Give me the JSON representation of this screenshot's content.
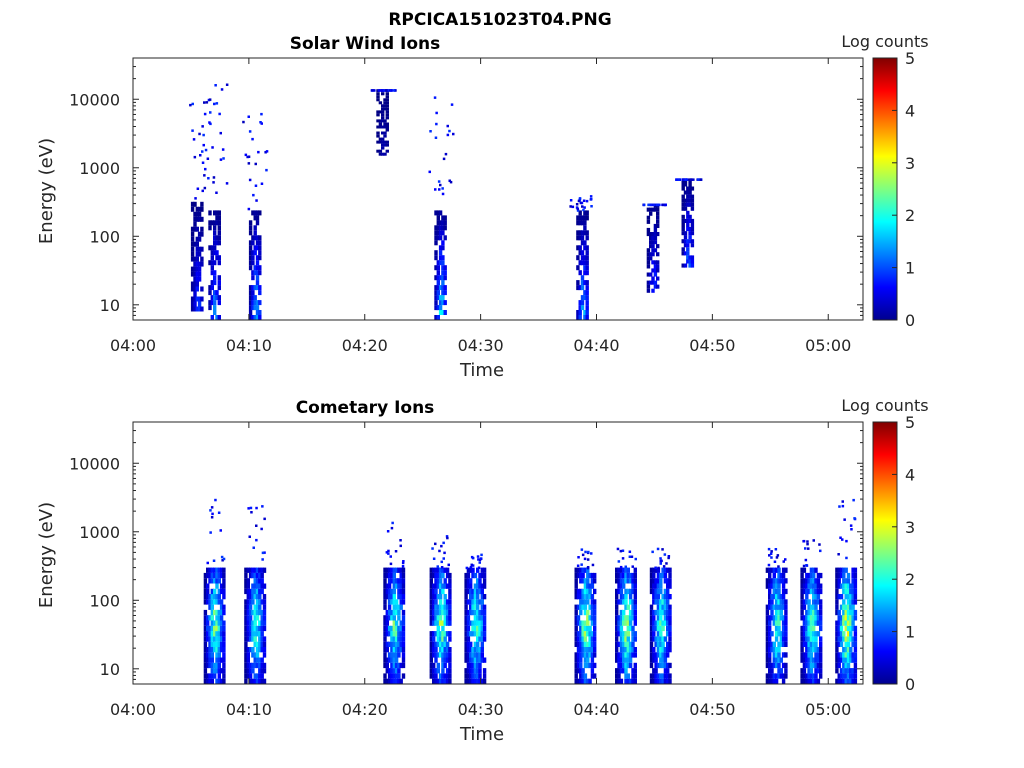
{
  "figure": {
    "title": "RPCICA151023T04.PNG"
  },
  "colorbar": {
    "label": "Log counts",
    "ticks": [
      "0",
      "1",
      "2",
      "3",
      "4",
      "5"
    ],
    "range": [
      0,
      5
    ],
    "colormap": "jet"
  },
  "chart_data": [
    {
      "type": "heatmap",
      "title": "Solar Wind Ions",
      "xlabel": "Time",
      "ylabel": "Energy (eV)",
      "yscale": "log",
      "xlim": [
        "04:00",
        "05:03"
      ],
      "ylim": [
        6,
        40000
      ],
      "xticks": [
        "04:00",
        "04:10",
        "04:20",
        "04:30",
        "04:40",
        "04:50",
        "05:00"
      ],
      "yticks": [
        "10",
        "100",
        "1000",
        "10000"
      ],
      "clabel": "Log counts",
      "clim": [
        0,
        5
      ],
      "bursts": [
        {
          "time": "04:05:30",
          "energy_min": 8,
          "energy_max": 13000,
          "peak_log_counts": 1.0
        },
        {
          "time": "04:07:00",
          "energy_min": 6,
          "energy_max": 20000,
          "peak_log_counts": 1.6
        },
        {
          "time": "04:10:30",
          "energy_min": 6,
          "energy_max": 7000,
          "peak_log_counts": 1.8
        },
        {
          "time": "04:21:30",
          "energy_min": 1500,
          "energy_max": 14000,
          "peak_log_counts": 0.3
        },
        {
          "time": "04:26:30",
          "energy_min": 6,
          "energy_max": 15000,
          "peak_log_counts": 2.2
        },
        {
          "time": "04:38:45",
          "energy_min": 6,
          "energy_max": 400,
          "peak_log_counts": 1.8
        },
        {
          "time": "04:44:50",
          "energy_min": 15,
          "energy_max": 300,
          "peak_log_counts": 1.0
        },
        {
          "time": "04:47:50",
          "energy_min": 35,
          "energy_max": 700,
          "peak_log_counts": 1.3
        }
      ]
    },
    {
      "type": "heatmap",
      "title": "Cometary Ions",
      "xlabel": "Time",
      "ylabel": "Energy (eV)",
      "yscale": "log",
      "xlim": [
        "04:00",
        "05:03"
      ],
      "ylim": [
        6,
        40000
      ],
      "xticks": [
        "04:00",
        "04:10",
        "04:20",
        "04:30",
        "04:40",
        "04:50",
        "05:00"
      ],
      "yticks": [
        "10",
        "100",
        "1000",
        "10000"
      ],
      "clabel": "Log counts",
      "clim": [
        0,
        5
      ],
      "bursts": [
        {
          "time": "04:07:00",
          "energy_min": 6,
          "energy_max": 3500,
          "peak_log_counts": 3.0
        },
        {
          "time": "04:10:30",
          "energy_min": 6,
          "energy_max": 2500,
          "peak_log_counts": 2.6
        },
        {
          "time": "04:22:30",
          "energy_min": 6,
          "energy_max": 1500,
          "peak_log_counts": 2.8
        },
        {
          "time": "04:26:30",
          "energy_min": 6,
          "energy_max": 900,
          "peak_log_counts": 3.0
        },
        {
          "time": "04:29:30",
          "energy_min": 6,
          "energy_max": 500,
          "peak_log_counts": 2.9
        },
        {
          "time": "04:39:00",
          "energy_min": 6,
          "energy_max": 600,
          "peak_log_counts": 3.2
        },
        {
          "time": "04:42:30",
          "energy_min": 6,
          "energy_max": 600,
          "peak_log_counts": 3.3
        },
        {
          "time": "04:45:30",
          "energy_min": 6,
          "energy_max": 600,
          "peak_log_counts": 2.8
        },
        {
          "time": "04:55:30",
          "energy_min": 6,
          "energy_max": 600,
          "peak_log_counts": 2.7
        },
        {
          "time": "04:58:30",
          "energy_min": 6,
          "energy_max": 800,
          "peak_log_counts": 2.8
        },
        {
          "time": "05:01:30",
          "energy_min": 6,
          "energy_max": 4000,
          "peak_log_counts": 3.7
        }
      ]
    }
  ]
}
